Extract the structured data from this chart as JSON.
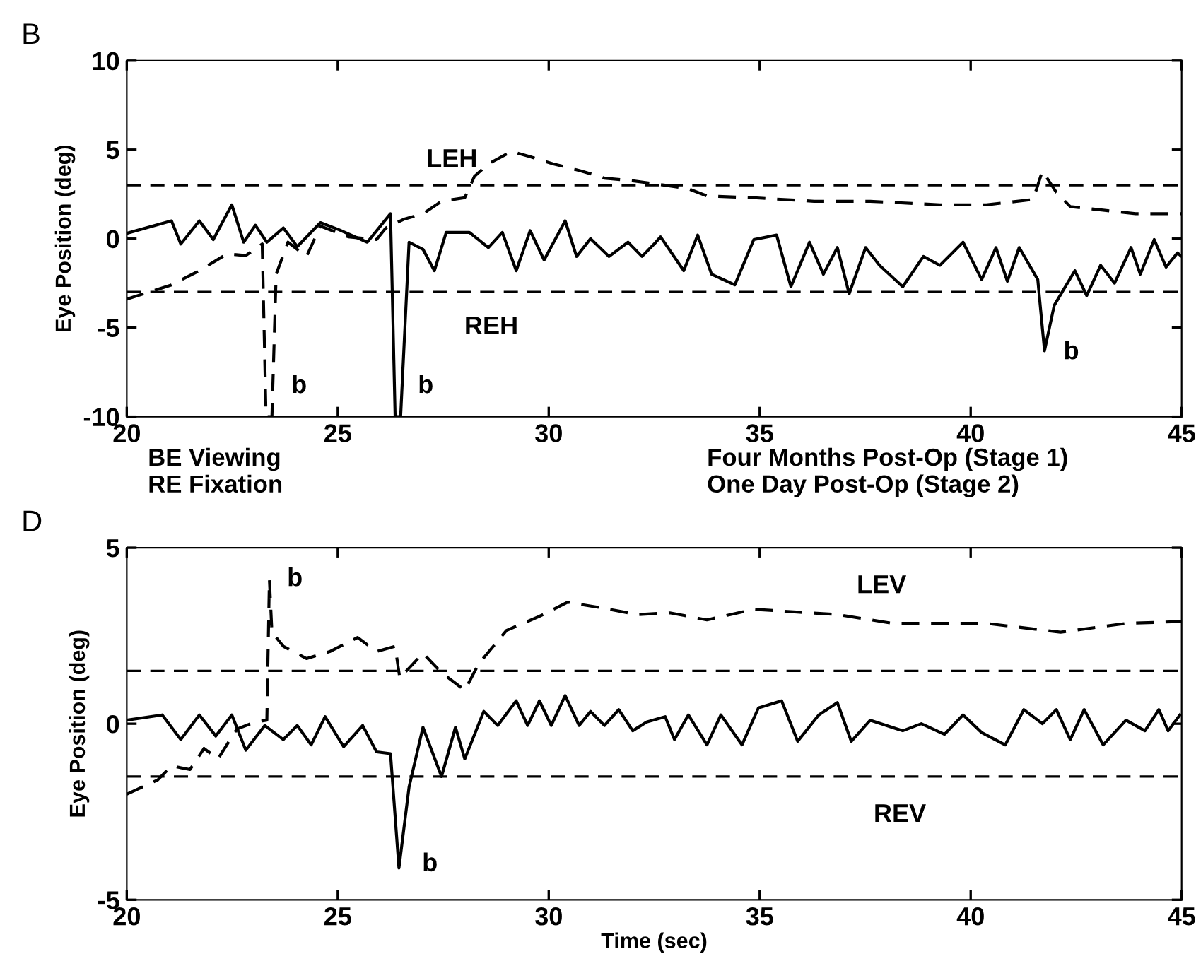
{
  "chart_data": [
    {
      "type": "line",
      "title": "B",
      "ylabel": "Eye Position (deg)",
      "xlim": [
        20,
        45
      ],
      "xticks": [
        20,
        25,
        30,
        35,
        40,
        45
      ],
      "ylim": [
        -10,
        10
      ],
      "yticks": [
        -10,
        -5,
        0,
        5,
        10
      ],
      "grid": false,
      "marker": "none",
      "series": [
        {
          "color": "#000000",
          "line_style": "solid",
          "x": [
            20.0,
            21.06,
            21.28,
            21.72,
            22.05,
            22.49,
            22.77,
            23.05,
            23.32,
            23.71,
            24.04,
            24.59,
            25.03,
            25.7,
            26.25,
            26.36,
            26.49,
            26.69,
            27.02,
            27.29,
            27.57,
            28.12,
            28.57,
            28.9,
            29.23,
            29.56,
            29.89,
            30.39,
            30.66,
            30.99,
            31.43,
            31.88,
            32.21,
            32.54,
            32.65,
            33.2,
            33.53,
            33.86,
            34.41,
            34.86,
            35.4,
            35.74,
            36.18,
            36.51,
            36.84,
            37.12,
            37.51,
            37.84,
            38.39,
            38.88,
            39.27,
            39.82,
            40.26,
            40.6,
            40.87,
            41.15,
            41.59,
            41.75,
            41.98,
            42.47,
            42.75,
            43.08,
            43.41,
            43.8,
            44.02,
            44.35,
            44.63,
            44.9,
            45.0
          ],
          "values": [
            0.3,
            1.0,
            -0.3,
            1.0,
            -0.05,
            1.9,
            -0.2,
            0.75,
            -0.2,
            0.6,
            -0.45,
            0.9,
            0.5,
            -0.2,
            1.4,
            -10,
            -10,
            -0.2,
            -0.6,
            -1.8,
            0.35,
            0.35,
            -0.5,
            0.35,
            -1.8,
            0.45,
            -1.2,
            1.0,
            -1.0,
            0.0,
            -1.0,
            -0.2,
            -1.0,
            -0.2,
            0.1,
            -1.8,
            0.2,
            -2.0,
            -2.6,
            -0.05,
            0.2,
            -2.7,
            -0.2,
            -2.0,
            -0.5,
            -3.1,
            -0.5,
            -1.5,
            -2.7,
            -1.0,
            -1.5,
            -0.2,
            -2.3,
            -0.5,
            -2.4,
            -0.5,
            -2.3,
            -6.3,
            -3.75,
            -1.8,
            -3.2,
            -1.5,
            -2.5,
            -0.5,
            -2.0,
            -0.05,
            -1.6,
            -0.8,
            -1.0
          ]
        },
        {
          "color": "#000000",
          "line_style": "dashed",
          "x": [
            20.0,
            21.06,
            21.72,
            22.38,
            22.82,
            23.21,
            23.3,
            23.44,
            23.54,
            23.82,
            24.26,
            24.59,
            25.25,
            25.92,
            26.14,
            26.58,
            27.02,
            27.46,
            28.01,
            28.24,
            28.57,
            29.12,
            29.56,
            30.11,
            30.77,
            31.32,
            31.99,
            32.76,
            33.31,
            33.75,
            34.86,
            36.29,
            37.62,
            39.27,
            40.37,
            41.48,
            41.7,
            42.03,
            42.36,
            43.14,
            43.91,
            44.9,
            45.0
          ],
          "values": [
            -3.4,
            -2.6,
            -1.8,
            -0.85,
            -0.95,
            -0.3,
            -10,
            -10,
            -2.0,
            -0.2,
            -1.0,
            0.7,
            0.1,
            -0.05,
            0.6,
            1.1,
            1.4,
            2.1,
            2.3,
            3.5,
            4.2,
            4.9,
            4.6,
            4.2,
            3.8,
            3.4,
            3.25,
            3.0,
            2.8,
            2.4,
            2.3,
            2.1,
            2.1,
            1.9,
            1.9,
            2.2,
            3.8,
            2.6,
            1.8,
            1.6,
            1.4,
            1.4,
            1.4
          ]
        }
      ],
      "ref_lines": [
        {
          "axis": "y",
          "value": 3,
          "color": "#000000",
          "line_style": "dashed"
        },
        {
          "axis": "y",
          "value": -3,
          "color": "#000000",
          "line_style": "dashed"
        }
      ],
      "annotations": [
        "LEH",
        "REH",
        "b",
        "b",
        "b",
        "BE Viewing",
        "RE Fixation",
        "Four Months Post-Op (Stage 1)",
        "One Day Post-Op (Stage 2)"
      ]
    },
    {
      "type": "line",
      "title": "D",
      "xlabel": "Time (sec)",
      "ylabel": "Eye Position (deg)",
      "xlim": [
        20,
        45
      ],
      "xticks": [
        20,
        25,
        30,
        35,
        40,
        45
      ],
      "ylim": [
        -5,
        5
      ],
      "yticks": [
        -5,
        0,
        5
      ],
      "grid": false,
      "marker": "none",
      "series": [
        {
          "color": "#000000",
          "line_style": "solid",
          "x": [
            20.0,
            20.84,
            21.28,
            21.72,
            22.11,
            22.49,
            22.82,
            23.27,
            23.71,
            24.04,
            24.37,
            24.7,
            25.14,
            25.59,
            25.92,
            26.25,
            26.45,
            26.69,
            27.02,
            27.46,
            27.79,
            28.01,
            28.46,
            28.79,
            29.23,
            29.5,
            29.78,
            30.06,
            30.39,
            30.72,
            30.99,
            31.32,
            31.66,
            31.99,
            32.32,
            32.76,
            32.98,
            33.31,
            33.75,
            34.08,
            34.58,
            34.97,
            35.52,
            35.9,
            36.4,
            36.84,
            37.17,
            37.62,
            38.39,
            38.83,
            39.38,
            39.82,
            40.26,
            40.82,
            41.26,
            41.7,
            42.03,
            42.36,
            42.69,
            43.14,
            43.68,
            44.13,
            44.46,
            44.68,
            44.96
          ],
          "values": [
            0.1,
            0.25,
            -0.45,
            0.25,
            -0.35,
            0.25,
            -0.75,
            -0.05,
            -0.45,
            -0.05,
            -0.6,
            0.2,
            -0.65,
            -0.05,
            -0.8,
            -0.85,
            -4.1,
            -1.8,
            -0.1,
            -1.5,
            -0.1,
            -1.0,
            0.35,
            -0.05,
            0.65,
            -0.05,
            0.65,
            -0.05,
            0.8,
            -0.05,
            0.35,
            -0.05,
            0.4,
            -0.2,
            0.05,
            0.2,
            -0.45,
            0.25,
            -0.6,
            0.25,
            -0.6,
            0.45,
            0.65,
            -0.5,
            0.25,
            0.6,
            -0.5,
            0.1,
            -0.2,
            0.0,
            -0.3,
            0.25,
            -0.25,
            -0.6,
            0.4,
            0.0,
            0.4,
            -0.45,
            0.4,
            -0.6,
            0.1,
            -0.2,
            0.4,
            -0.2,
            0.25
          ]
        },
        {
          "color": "#000000",
          "line_style": "dashed",
          "x": [
            20.0,
            20.73,
            21.06,
            21.5,
            21.83,
            22.16,
            22.61,
            23.05,
            23.32,
            23.38,
            23.44,
            23.71,
            24.26,
            24.81,
            25.47,
            25.92,
            26.36,
            26.47,
            27.02,
            27.46,
            28.01,
            28.34,
            29.0,
            29.78,
            30.44,
            31.21,
            32.1,
            32.87,
            33.75,
            34.86,
            36.84,
            38.16,
            40.37,
            42.13,
            43.68,
            44.9,
            45.0
          ],
          "values": [
            -2.0,
            -1.6,
            -1.2,
            -1.3,
            -0.7,
            -1.0,
            -0.15,
            0.05,
            0.1,
            4.1,
            2.6,
            2.2,
            1.85,
            2.05,
            2.45,
            2.05,
            2.2,
            1.3,
            2.0,
            1.45,
            0.95,
            1.7,
            2.65,
            3.05,
            3.45,
            3.3,
            3.1,
            3.15,
            2.95,
            3.25,
            3.1,
            2.85,
            2.85,
            2.6,
            2.85,
            2.9,
            2.9
          ]
        }
      ],
      "ref_lines": [
        {
          "axis": "y",
          "value": 1.5,
          "color": "#000000",
          "line_style": "dashed"
        },
        {
          "axis": "y",
          "value": -1.5,
          "color": "#000000",
          "line_style": "dashed"
        }
      ],
      "annotations": [
        "LEV",
        "REV",
        "b",
        "b"
      ]
    }
  ]
}
